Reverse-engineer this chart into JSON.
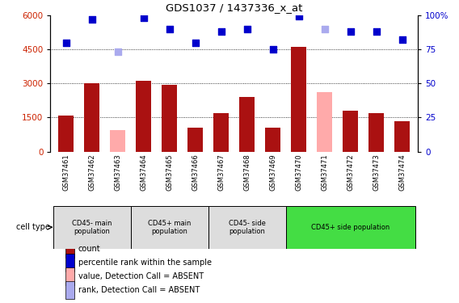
{
  "title": "GDS1037 / 1437336_x_at",
  "samples": [
    "GSM37461",
    "GSM37462",
    "GSM37463",
    "GSM37464",
    "GSM37465",
    "GSM37466",
    "GSM37467",
    "GSM37468",
    "GSM37469",
    "GSM37470",
    "GSM37471",
    "GSM37472",
    "GSM37473",
    "GSM37474"
  ],
  "count_values": [
    1600,
    3000,
    null,
    3100,
    2950,
    1050,
    1700,
    2400,
    1050,
    4600,
    null,
    1800,
    1700,
    1350
  ],
  "count_absent_values": [
    null,
    null,
    950,
    null,
    null,
    null,
    null,
    null,
    null,
    null,
    2600,
    null,
    null,
    null
  ],
  "rank_values": [
    80,
    97,
    null,
    98,
    90,
    80,
    88,
    90,
    75,
    99,
    null,
    88,
    88,
    82
  ],
  "rank_absent_values": [
    null,
    null,
    73,
    null,
    null,
    null,
    null,
    null,
    null,
    null,
    90,
    null,
    null,
    null
  ],
  "bar_color_present": "#aa1111",
  "bar_color_absent": "#ffaaaa",
  "dot_color_present": "#0000cc",
  "dot_color_absent": "#aaaaee",
  "ylim_left": [
    0,
    6000
  ],
  "ylim_right": [
    0,
    100
  ],
  "yticks_left": [
    0,
    1500,
    3000,
    4500,
    6000
  ],
  "yticks_right": [
    0,
    25,
    50,
    75,
    100
  ],
  "grid_values": [
    1500,
    3000,
    4500
  ],
  "group_boundaries": [
    {
      "start": 0,
      "end": 3,
      "label": "CD45- main\npopulation",
      "color": "#dddddd"
    },
    {
      "start": 3,
      "end": 6,
      "label": "CD45+ main\npopulation",
      "color": "#dddddd"
    },
    {
      "start": 6,
      "end": 9,
      "label": "CD45- side\npopulation",
      "color": "#dddddd"
    },
    {
      "start": 9,
      "end": 14,
      "label": "CD45+ side population",
      "color": "#44dd44"
    }
  ],
  "legend_items": [
    {
      "label": "count",
      "color": "#aa1111"
    },
    {
      "label": "percentile rank within the sample",
      "color": "#0000cc"
    },
    {
      "label": "value, Detection Call = ABSENT",
      "color": "#ffaaaa"
    },
    {
      "label": "rank, Detection Call = ABSENT",
      "color": "#aaaaee"
    }
  ]
}
